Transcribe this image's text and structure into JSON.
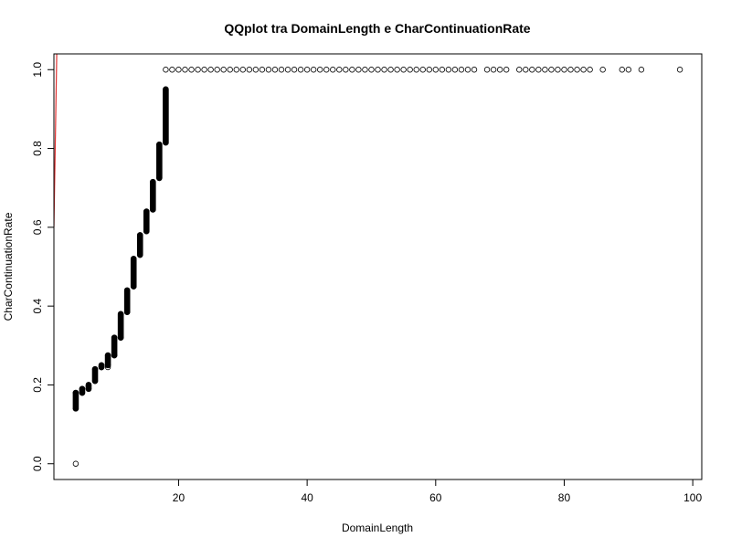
{
  "chart_data": {
    "type": "scatter",
    "title": "QQplot tra DomainLength e CharContinuationRate",
    "xlabel": "DomainLength",
    "ylabel": "CharContinuationRate",
    "xlim": [
      0.6,
      101.4
    ],
    "ylim": [
      -0.04,
      1.04
    ],
    "x_ticks": [
      20,
      40,
      60,
      80,
      100
    ],
    "x_tick_labels": [
      "20",
      "40",
      "60",
      "80",
      "100"
    ],
    "y_ticks": [
      0.0,
      0.2,
      0.4,
      0.6,
      0.8,
      1.0
    ],
    "y_tick_labels": [
      "0.0",
      "0.2",
      "0.4",
      "0.6",
      "0.8",
      "1.0"
    ],
    "grid": false,
    "legend": "none",
    "colors": {
      "points": "#000000",
      "reference_line": "#e03030",
      "axes": "#000000"
    },
    "reference_line": {
      "intercept": 0,
      "slope": 1
    },
    "series": [
      {
        "stacks": [
          {
            "x": 4,
            "ymin": 0.14,
            "ymax": 0.18
          },
          {
            "x": 5,
            "ymin": 0.18,
            "ymax": 0.19
          },
          {
            "x": 6,
            "ymin": 0.19,
            "ymax": 0.2
          },
          {
            "x": 7,
            "ymin": 0.21,
            "ymax": 0.24
          },
          {
            "x": 8,
            "ymin": 0.245,
            "ymax": 0.25
          },
          {
            "x": 9,
            "ymin": 0.25,
            "ymax": 0.275
          },
          {
            "x": 10,
            "ymin": 0.275,
            "ymax": 0.32
          },
          {
            "x": 11,
            "ymin": 0.32,
            "ymax": 0.38
          },
          {
            "x": 12,
            "ymin": 0.385,
            "ymax": 0.44
          },
          {
            "x": 13,
            "ymin": 0.45,
            "ymax": 0.52
          },
          {
            "x": 14,
            "ymin": 0.53,
            "ymax": 0.58
          },
          {
            "x": 15,
            "ymin": 0.59,
            "ymax": 0.64
          },
          {
            "x": 16,
            "ymin": 0.645,
            "ymax": 0.715
          },
          {
            "x": 17,
            "ymin": 0.725,
            "ymax": 0.81
          },
          {
            "x": 18,
            "ymin": 0.815,
            "ymax": 0.95
          }
        ],
        "points": [
          {
            "x": 4,
            "y": 0.0
          },
          {
            "x": 8,
            "y": 0.245
          },
          {
            "x": 9,
            "y": 0.245
          },
          {
            "x": 18,
            "y": 1.0
          },
          {
            "x": 60,
            "y": 1.0
          },
          {
            "x": 61,
            "y": 1.0
          },
          {
            "x": 62,
            "y": 1.0
          },
          {
            "x": 63,
            "y": 1.0
          },
          {
            "x": 64,
            "y": 1.0
          },
          {
            "x": 65,
            "y": 1.0
          },
          {
            "x": 66,
            "y": 1.0
          },
          {
            "x": 68,
            "y": 1.0
          },
          {
            "x": 69,
            "y": 1.0
          },
          {
            "x": 70,
            "y": 1.0
          },
          {
            "x": 71,
            "y": 1.0
          },
          {
            "x": 73,
            "y": 1.0
          },
          {
            "x": 74,
            "y": 1.0
          },
          {
            "x": 75,
            "y": 1.0
          },
          {
            "x": 76,
            "y": 1.0
          },
          {
            "x": 77,
            "y": 1.0
          },
          {
            "x": 78,
            "y": 1.0
          },
          {
            "x": 79,
            "y": 1.0
          },
          {
            "x": 80,
            "y": 1.0
          },
          {
            "x": 81,
            "y": 1.0
          },
          {
            "x": 82,
            "y": 1.0
          },
          {
            "x": 83,
            "y": 1.0
          },
          {
            "x": 84,
            "y": 1.0
          },
          {
            "x": 86,
            "y": 1.0
          },
          {
            "x": 89,
            "y": 1.0
          },
          {
            "x": 90,
            "y": 1.0
          },
          {
            "x": 92,
            "y": 1.0
          },
          {
            "x": 98,
            "y": 1.0
          }
        ],
        "continuous_runs": [
          {
            "x_from": 19,
            "x_to": 59,
            "y": 1.0
          }
        ]
      }
    ]
  }
}
